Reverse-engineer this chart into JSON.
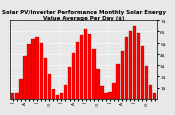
{
  "title": "Solar PV/Inverter Performance Monthly Solar Energy Value Average Per Day ($)",
  "bar_color": "#ff0000",
  "edge_color": "#990000",
  "background_color": "#e8e8e8",
  "plot_bg_color": "#e8e8e8",
  "grid_color": "#ffffff",
  "ylim": [
    0,
    7
  ],
  "ytick_vals": [
    1,
    2,
    3,
    4,
    5,
    6,
    7
  ],
  "ytick_labels": [
    "1$",
    "2$",
    "3$",
    "4$",
    "5$",
    "6$",
    "7$"
  ],
  "values": [
    0.55,
    0.55,
    1.8,
    3.8,
    4.9,
    5.3,
    5.5,
    5.0,
    3.6,
    2.2,
    0.9,
    0.35,
    0.5,
    1.25,
    2.8,
    4.1,
    5.1,
    5.7,
    6.2,
    5.8,
    4.4,
    2.7,
    1.1,
    0.5,
    0.6,
    1.4,
    3.1,
    4.3,
    5.5,
    6.0,
    6.5,
    5.9,
    4.7,
    2.95,
    1.25,
    0.5
  ],
  "n_years": 3,
  "months_per_year": 12,
  "title_fontsize": 4.0,
  "tick_fontsize": 3.2,
  "bar_width": 0.82
}
